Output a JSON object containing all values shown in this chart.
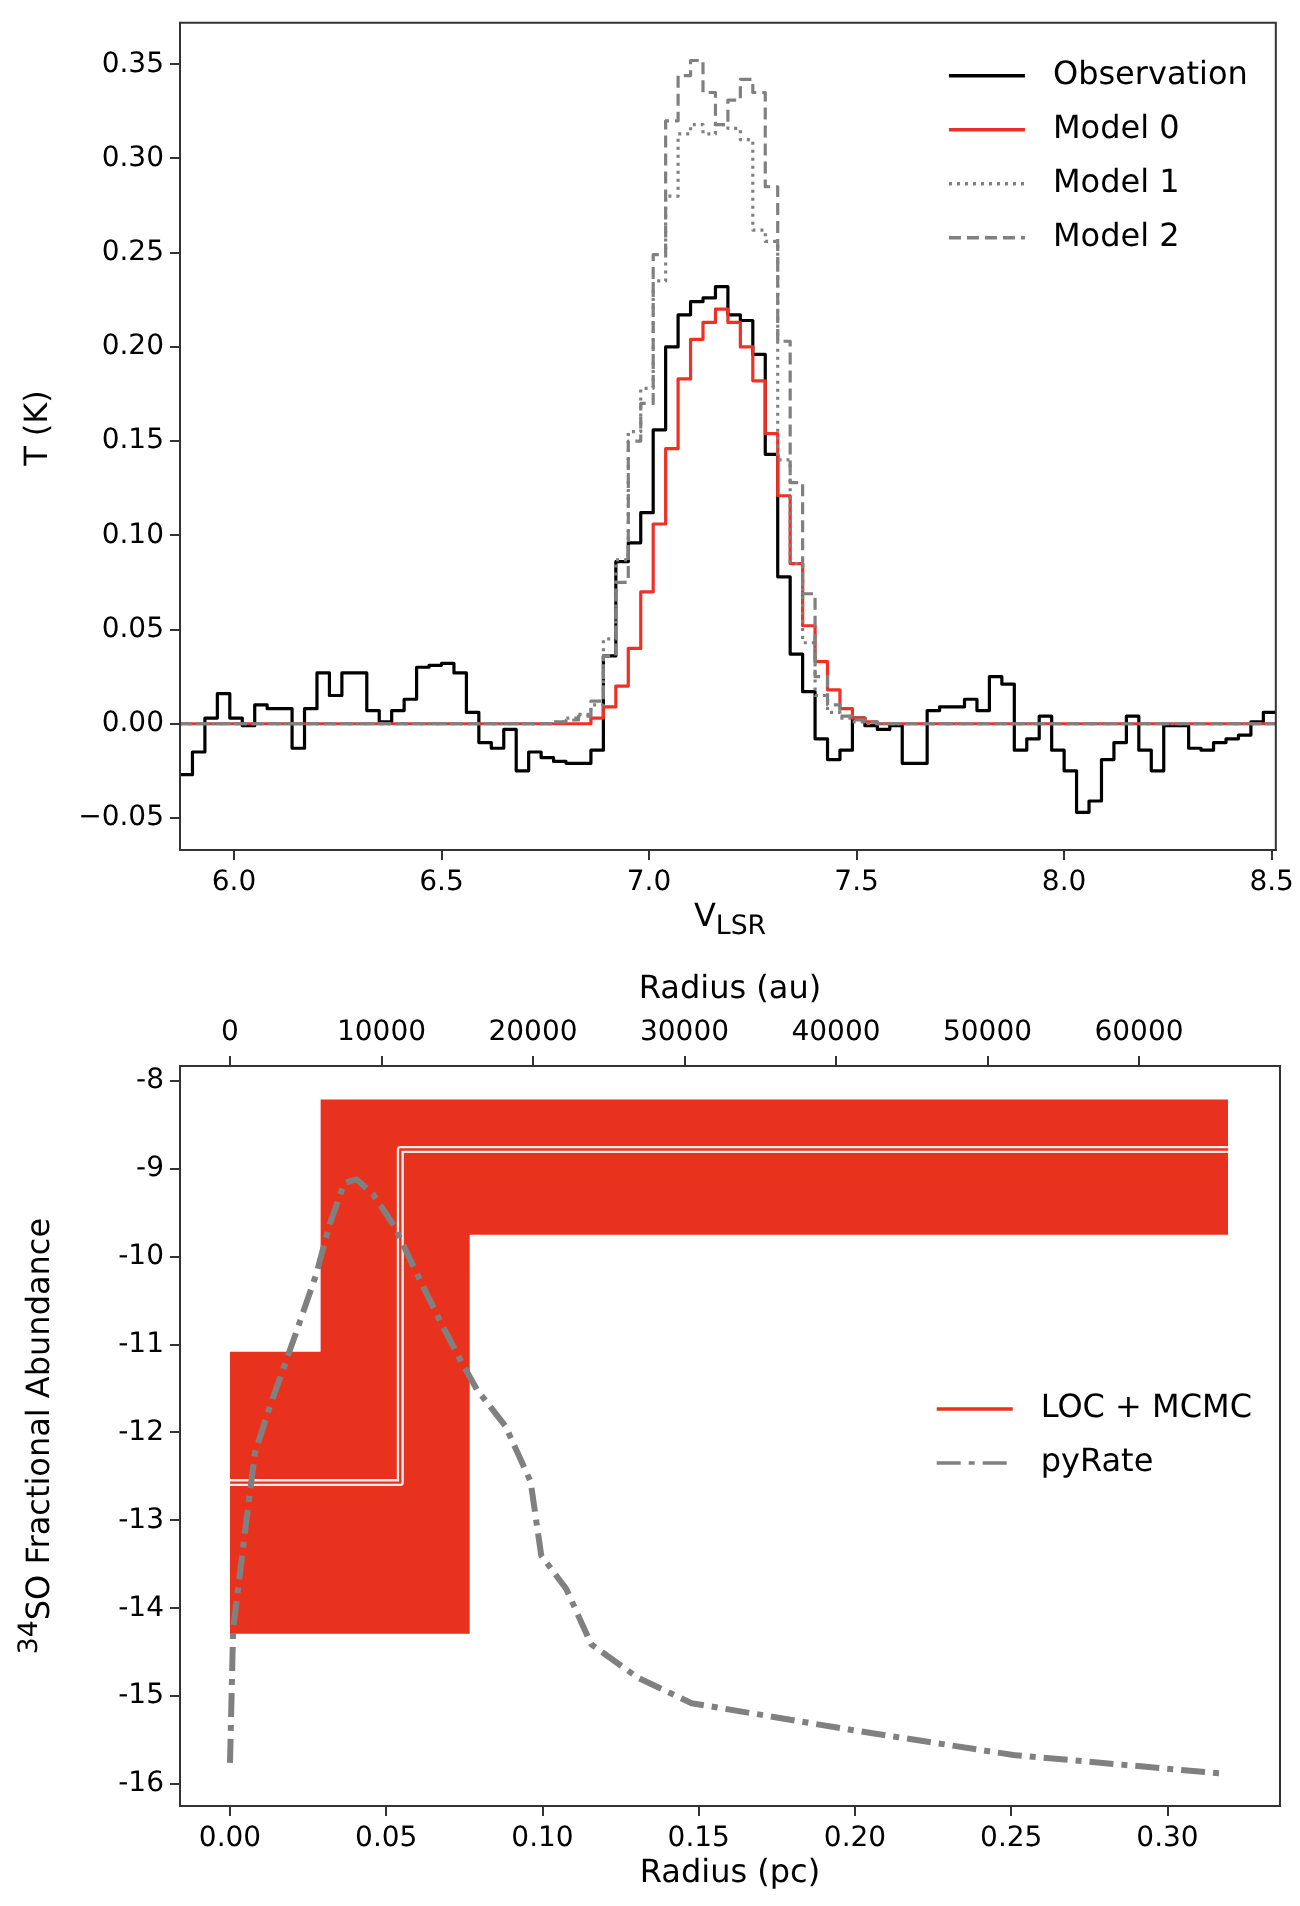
{
  "chart_data": [
    {
      "type": "step",
      "xlabel": "V$_{LSR}$",
      "ylabel": "T (K)",
      "legend": "top right",
      "xlim": [
        5.87,
        8.51
      ],
      "xticks": [
        {
          "value": 6,
          "label": "6.0"
        },
        {
          "value": 6.5,
          "label": "6.5"
        },
        {
          "value": 7,
          "label": "7.0"
        },
        {
          "value": 7.5,
          "label": "7.5"
        },
        {
          "value": 8,
          "label": "8.0"
        },
        {
          "value": 8.5,
          "label": "8.5"
        }
      ],
      "ylim": [
        -0.067,
        0.372
      ],
      "yticks": [
        {
          "value": -0.05,
          "label": "−0.05"
        },
        {
          "value": 0,
          "label": "0.00"
        },
        {
          "value": 0.05,
          "label": "0.05"
        },
        {
          "value": 0.1,
          "label": "0.10"
        },
        {
          "value": 0.15,
          "label": "0.15"
        },
        {
          "value": 0.2,
          "label": "0.20"
        },
        {
          "value": 0.25,
          "label": "0.25"
        },
        {
          "value": 0.3,
          "label": "0.30"
        },
        {
          "value": 0.35,
          "label": "0.35"
        }
      ],
      "x": [
        5.87,
        5.9,
        5.93,
        5.96,
        5.99,
        6.02,
        6.05,
        6.08,
        6.11,
        6.14,
        6.17,
        6.2,
        6.23,
        6.26,
        6.29,
        6.32,
        6.35,
        6.38,
        6.41,
        6.44,
        6.47,
        6.5,
        6.53,
        6.56,
        6.59,
        6.62,
        6.65,
        6.68,
        6.71,
        6.74,
        6.77,
        6.8,
        6.83,
        6.86,
        6.89,
        6.92,
        6.95,
        6.98,
        7.01,
        7.04,
        7.07,
        7.1,
        7.13,
        7.16,
        7.19,
        7.22,
        7.25,
        7.28,
        7.31,
        7.34,
        7.37,
        7.4,
        7.43,
        7.46,
        7.49,
        7.52,
        7.55,
        7.58,
        7.61,
        7.64,
        7.67,
        7.7,
        7.73,
        7.76,
        7.79,
        7.82,
        7.85,
        7.88,
        7.91,
        7.94,
        7.97,
        8.0,
        8.03,
        8.06,
        8.09,
        8.12,
        8.15,
        8.18,
        8.21,
        8.24,
        8.27,
        8.3,
        8.33,
        8.36,
        8.39,
        8.42,
        8.45,
        8.48,
        8.51
      ],
      "series": [
        {
          "name": "Observation",
          "color": "#000000",
          "values": [
            -0.027,
            -0.015,
            0.003,
            0.016,
            0.003,
            -0.001,
            0.01,
            0.008,
            0.008,
            -0.013,
            0.008,
            0.027,
            0.015,
            0.027,
            0.027,
            0.007,
            0.001,
            0.007,
            0.013,
            0.03,
            0.031,
            0.032,
            0.027,
            0.006,
            -0.01,
            -0.013,
            -0.003,
            -0.025,
            -0.015,
            -0.018,
            -0.02,
            -0.021,
            -0.021,
            -0.014,
            0.036,
            0.086,
            0.096,
            0.112,
            0.156,
            0.2,
            0.217,
            0.224,
            0.226,
            0.232,
            0.217,
            0.214,
            0.196,
            0.143,
            0.078,
            0.037,
            0.017,
            -0.008,
            -0.019,
            -0.014,
            0.003,
            -0.001,
            -0.003,
            -0.001,
            -0.021,
            -0.021,
            0.007,
            0.009,
            0.009,
            0.013,
            0.007,
            0.025,
            0.021,
            -0.014,
            -0.008,
            0.004,
            -0.014,
            -0.025,
            -0.047,
            -0.041,
            -0.019,
            -0.01,
            0.004,
            -0.014,
            -0.025,
            -0.001,
            -0.001,
            -0.013,
            -0.014,
            -0.01,
            -0.008,
            -0.006,
            0.001,
            0.006,
            0.006
          ]
        },
        {
          "name": "Model 0",
          "color": "#ee3124",
          "values": [
            0,
            0,
            0,
            0,
            0,
            0,
            0,
            0,
            0,
            0,
            0,
            0,
            0,
            0,
            0,
            0,
            0,
            0,
            0,
            0,
            0,
            0,
            0,
            0,
            0,
            0,
            0,
            0,
            0,
            0,
            0,
            0,
            0,
            0.003,
            0.009,
            0.02,
            0.04,
            0.07,
            0.106,
            0.146,
            0.183,
            0.204,
            0.213,
            0.22,
            0.213,
            0.2,
            0.182,
            0.154,
            0.121,
            0.085,
            0.052,
            0.033,
            0.018,
            0.008,
            0.003,
            0.001,
            0,
            0,
            0,
            0,
            0,
            0,
            0,
            0,
            0,
            0,
            0,
            0,
            0,
            0,
            0,
            0,
            0,
            0,
            0,
            0,
            0,
            0,
            0,
            0,
            0,
            0,
            0,
            0,
            0,
            0,
            0,
            0,
            0
          ]
        },
        {
          "name": "Model 1",
          "color": "#808080",
          "line_style": "dotted",
          "values": [
            0,
            0,
            0,
            0,
            0,
            0,
            0,
            0,
            0,
            0,
            0,
            0,
            0,
            0,
            0,
            0,
            0,
            0,
            0,
            0,
            0,
            0,
            0,
            0,
            0,
            0,
            0,
            0,
            0,
            0,
            0.001,
            0.003,
            0.005,
            0.01,
            0.045,
            0.087,
            0.155,
            0.178,
            0.235,
            0.28,
            0.313,
            0.318,
            0.313,
            0.318,
            0.316,
            0.31,
            0.262,
            0.256,
            0.14,
            0.085,
            0.043,
            0.015,
            0.006,
            0.003,
            0.001,
            0,
            0,
            0,
            0,
            0,
            0,
            0,
            0,
            0,
            0,
            0,
            0,
            0,
            0,
            0,
            0,
            0,
            0,
            0,
            0,
            0,
            0,
            0,
            0,
            0,
            0,
            0,
            0,
            0,
            0,
            0,
            0,
            0,
            0
          ]
        },
        {
          "name": "Model 2",
          "color": "#808080",
          "line_style": "dashed",
          "values": [
            0,
            0,
            0,
            0,
            0,
            0,
            0,
            0,
            0,
            0,
            0,
            0,
            0,
            0,
            0,
            0,
            0,
            0,
            0,
            0,
            0,
            0,
            0,
            0,
            0,
            0,
            0,
            0,
            0,
            0,
            0.001,
            0.002,
            0.004,
            0.012,
            0.036,
            0.075,
            0.15,
            0.17,
            0.249,
            0.32,
            0.344,
            0.352,
            0.335,
            0.318,
            0.331,
            0.342,
            0.335,
            0.285,
            0.203,
            0.128,
            0.069,
            0.025,
            0.01,
            0.004,
            0.002,
            0.001,
            0,
            0,
            0,
            0,
            0,
            0,
            0,
            0,
            0,
            0,
            0,
            0,
            0,
            0,
            0,
            0,
            0,
            0,
            0,
            0,
            0,
            0,
            0,
            0,
            0,
            0,
            0,
            0,
            0,
            0,
            0,
            0,
            0
          ]
        }
      ]
    },
    {
      "type": "line",
      "xlabel": "Radius (pc)",
      "x2label": "Radius (au)",
      "ylabel": "$^{34}$SO Fractional Abundance",
      "legend": "right",
      "xlim": [
        -0.016,
        0.336
      ],
      "xticks": [
        {
          "value": 0,
          "label": "0.00"
        },
        {
          "value": 0.05,
          "label": "0.05"
        },
        {
          "value": 0.1,
          "label": "0.10"
        },
        {
          "value": 0.15,
          "label": "0.15"
        },
        {
          "value": 0.2,
          "label": "0.20"
        },
        {
          "value": 0.25,
          "label": "0.25"
        },
        {
          "value": 0.3,
          "label": "0.30"
        }
      ],
      "x2lim": [
        -3300,
        69305
      ],
      "x2ticks": [
        0,
        10000,
        20000,
        30000,
        40000,
        50000,
        60000
      ],
      "ylim": [
        -16.25,
        -7.83
      ],
      "yticks": [
        -16,
        -15,
        -14,
        -13,
        -12,
        -11,
        -10,
        -9,
        -8
      ],
      "series": [
        {
          "name": "LOC + MCMC",
          "type": "step",
          "color": "#e8321e",
          "x": [
            0,
            0.029,
            0.0545,
            0.0767,
            0.3194
          ],
          "values": [
            -12.57,
            -12.57,
            -8.78,
            -8.78,
            -8.78
          ],
          "lower": [
            -14.29,
            -14.29,
            -14.29,
            -9.75,
            -9.75
          ],
          "upper": [
            -11.08,
            -8.21,
            -8.21,
            -8.21,
            -8.21
          ]
        },
        {
          "name": "pyRate",
          "type": "line",
          "color": "#808080",
          "line_style": "dashdot",
          "x": [
            0,
            0.001,
            0.005,
            0.008,
            0.0126,
            0.0206,
            0.0275,
            0.032,
            0.0366,
            0.0405,
            0.0458,
            0.0527,
            0.0595,
            0.0676,
            0.0744,
            0.079,
            0.0882,
            0.0962,
            0.0996,
            0.1076,
            0.1156,
            0.1305,
            0.1477,
            0.198,
            0.2507,
            0.3172
          ],
          "values": [
            -15.76,
            -14.24,
            -13.07,
            -12.23,
            -11.72,
            -10.92,
            -10.21,
            -9.62,
            -9.16,
            -9.12,
            -9.29,
            -9.66,
            -10.17,
            -10.76,
            -11.22,
            -11.51,
            -11.93,
            -12.56,
            -13.4,
            -13.78,
            -14.41,
            -14.79,
            -15.08,
            -15.38,
            -15.67,
            -15.88
          ]
        }
      ]
    }
  ]
}
